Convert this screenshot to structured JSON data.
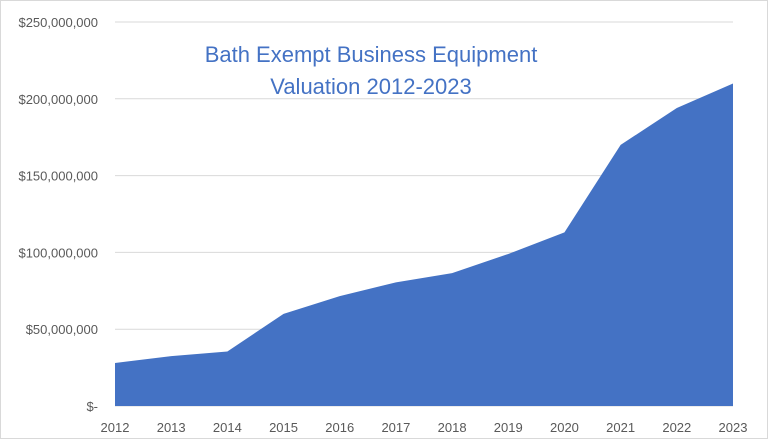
{
  "chart_data": {
    "type": "area",
    "title_line1": "Bath Exempt Business Equipment",
    "title_line2": "Valuation 2012-2023",
    "categories": [
      "2012",
      "2013",
      "2014",
      "2015",
      "2016",
      "2017",
      "2018",
      "2019",
      "2020",
      "2021",
      "2022",
      "2023"
    ],
    "values": [
      28000000,
      32500000,
      35500000,
      60000000,
      71500000,
      80500000,
      86500000,
      99000000,
      113000000,
      170000000,
      194000000,
      210000000
    ],
    "ylim": [
      0,
      250000000
    ],
    "yticks": [
      0,
      50000000,
      100000000,
      150000000,
      200000000,
      250000000
    ],
    "ytick_labels": [
      "$-",
      "$50,000,000",
      "$100,000,000",
      "$150,000,000",
      "$200,000,000",
      "$250,000,000"
    ],
    "grid": true,
    "fill_color": "#4472c4",
    "title_color": "#4472c4"
  }
}
